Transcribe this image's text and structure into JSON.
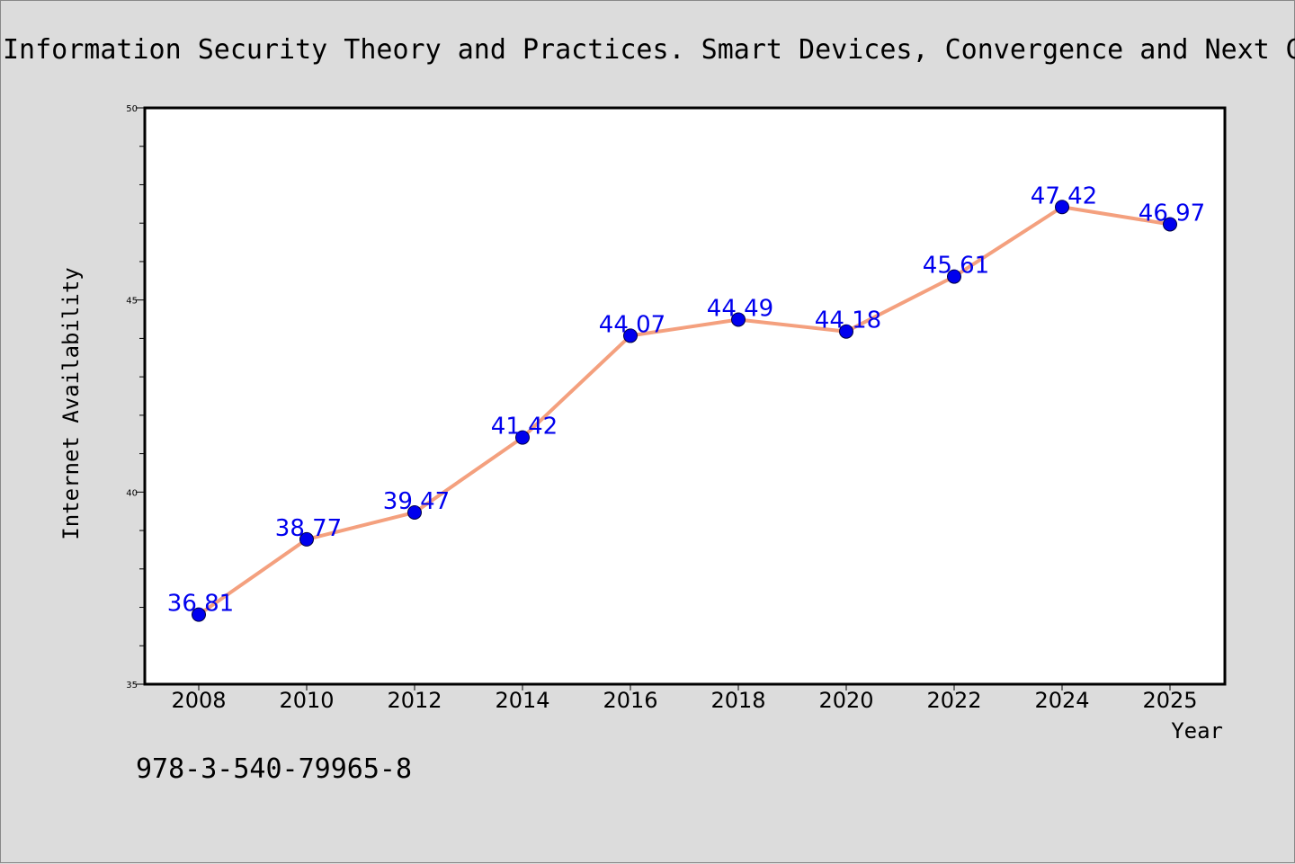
{
  "title": "Information Security Theory and Practices. Smart Devices, Convergence and Next G",
  "footer_text": "978-3-540-79965-8",
  "colors": {
    "background": "#dcdcdc",
    "plot_background": "#ffffff",
    "line": "#f4a07e",
    "marker": "#0000ee",
    "data_label": "#0000ee"
  },
  "chart_data": {
    "type": "line",
    "title": "Information Security Theory and Practices. Smart Devices, Convergence and Next G",
    "xlabel": "Year",
    "ylabel": "Internet Availability",
    "categories": [
      "2008",
      "2010",
      "2012",
      "2014",
      "2016",
      "2018",
      "2020",
      "2022",
      "2024",
      "2025"
    ],
    "series": [
      {
        "values": [
          36.81,
          38.77,
          39.47,
          41.42,
          44.07,
          44.49,
          44.18,
          45.61,
          47.42,
          46.97
        ],
        "labels": [
          "36.81",
          "38.77",
          "39.47",
          "41.42",
          "44.07",
          "44.49",
          "44.18",
          "45.61",
          "47.42",
          "46.97"
        ]
      }
    ],
    "ylim": [
      35,
      50
    ],
    "yticks": [
      "35",
      "40",
      "45",
      "50"
    ],
    "y_minor_step": 1,
    "grid": false,
    "legend": "none"
  }
}
